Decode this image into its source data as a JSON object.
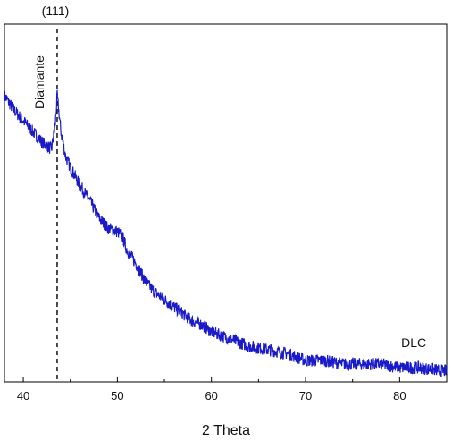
{
  "chart_data": {
    "type": "line",
    "title": "",
    "xlabel": "2 Theta",
    "ylabel": "",
    "xlim": [
      38,
      85
    ],
    "ylim": [
      0,
      1
    ],
    "grid": false,
    "x_ticks": [
      40,
      50,
      60,
      70,
      80
    ],
    "series": [
      {
        "color": "#1a1ac8",
        "x": [
          38,
          39,
          40,
          41,
          42,
          43,
          43.4,
          43.6,
          44,
          44.5,
          45,
          46,
          47,
          48,
          49,
          50,
          50.5,
          51,
          52,
          53,
          54,
          55,
          56,
          57,
          58,
          59,
          60,
          62,
          64,
          66,
          68,
          70,
          72,
          74,
          76,
          78,
          80,
          82,
          85
        ],
        "y": [
          0.8,
          0.76,
          0.73,
          0.7,
          0.67,
          0.65,
          0.72,
          0.8,
          0.7,
          0.63,
          0.6,
          0.55,
          0.51,
          0.46,
          0.43,
          0.42,
          0.41,
          0.37,
          0.33,
          0.28,
          0.25,
          0.23,
          0.21,
          0.19,
          0.17,
          0.16,
          0.14,
          0.12,
          0.1,
          0.09,
          0.08,
          0.06,
          0.06,
          0.05,
          0.05,
          0.05,
          0.04,
          0.04,
          0.03
        ]
      }
    ],
    "annotations": [
      {
        "text": "(111)",
        "x": 43.6,
        "position": "above-plot"
      },
      {
        "text": "Diamante",
        "x": 43.6,
        "orientation": "vertical"
      },
      {
        "text": "DLC",
        "x": 81.5,
        "y": 0.09
      }
    ],
    "reference_line": {
      "x": 43.6,
      "style": "dashed"
    }
  }
}
